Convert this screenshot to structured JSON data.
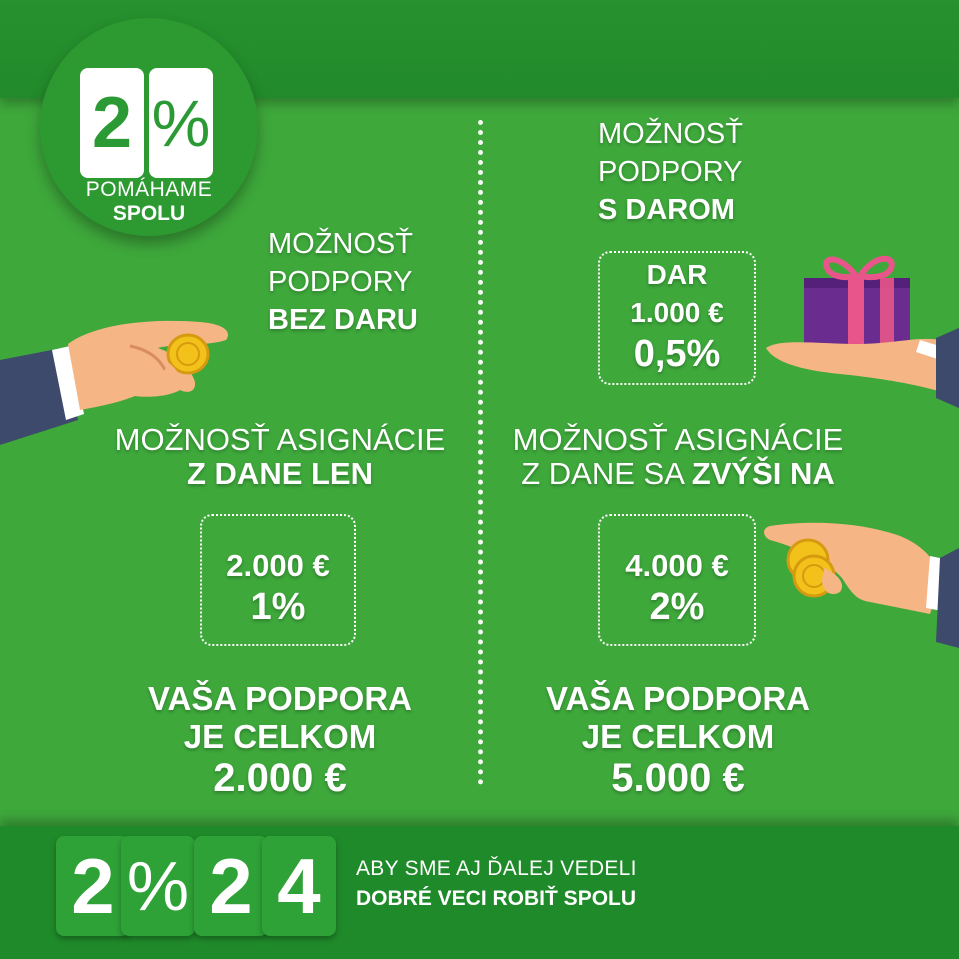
{
  "logo": {
    "tile1": "2",
    "tile2": "%",
    "line1": "POMÁHAME",
    "line2": "SPOLU"
  },
  "left": {
    "heading_line1": "MOŽNOSŤ",
    "heading_line2": "PODPORY",
    "heading_line3": "BEZ DARU",
    "assign_line1": "MOŽNOSŤ ASIGNÁCIE",
    "assign_line2": "Z DANE LEN",
    "amount": "2.000 €",
    "percent": "1%",
    "total_line1": "VAŠA PODPORA",
    "total_line2": "JE CELKOM",
    "total_value": "2.000 €"
  },
  "right": {
    "heading_line1": "MOŽNOSŤ",
    "heading_line2": "PODPORY",
    "heading_line3": "S DAROM",
    "gift_label": "DAR",
    "gift_amount": "1.000 €",
    "gift_percent": "0,5%",
    "assign_line1": "MOŽNOSŤ ASIGNÁCIE",
    "assign_line2_light": "Z DANE SA ",
    "assign_line2_bold": "ZVÝŠI NA",
    "amount": "4.000 €",
    "percent": "2%",
    "total_line1": "VAŠA PODPORA",
    "total_line2": "JE CELKOM",
    "total_value": "5.000 €"
  },
  "footer": {
    "tiles": [
      "2",
      "%",
      "2",
      "4"
    ],
    "tagline1": "ABY SME AJ ĎALEJ VEDELI",
    "tagline2": "DOBRÉ VECI ROBIŤ SPOLU"
  },
  "icons": [
    "hand-coin-icon",
    "gift-hand-icon",
    "hand-coins-icon"
  ],
  "colors": {
    "background": "#3ea83b",
    "band": "#228a2b",
    "tile_text": "#2b9a35",
    "gift": "#6a2c8e",
    "ribbon": "#e8558a",
    "coin": "#f2c21b"
  }
}
